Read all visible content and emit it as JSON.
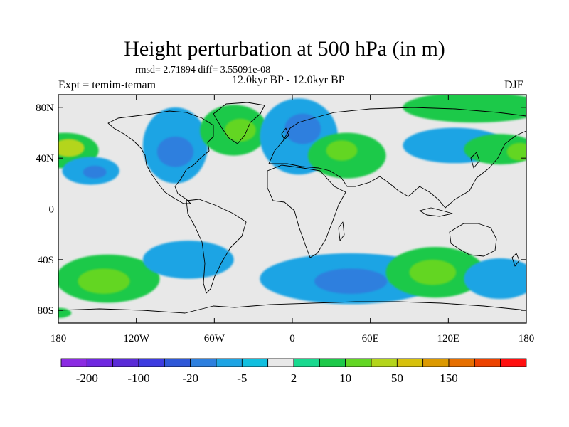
{
  "title": "Height perturbation at 500 hPa (in m)",
  "stats": "rmsd= 2.71894 diff= 3.55091e-08",
  "experiment": "Expt = temim-temam",
  "period": "12.0kyr BP - 12.0kyr BP",
  "season": "DJF",
  "map": {
    "projection": "cylindrical equidistant",
    "lon_range": [
      -180,
      180
    ],
    "lat_range": [
      -90,
      90
    ],
    "x_ticks": [
      {
        "lon": -180,
        "label": "180"
      },
      {
        "lon": -120,
        "label": "120W"
      },
      {
        "lon": -60,
        "label": "60W"
      },
      {
        "lon": 0,
        "label": "0"
      },
      {
        "lon": 60,
        "label": "60E"
      },
      {
        "lon": 120,
        "label": "120E"
      },
      {
        "lon": 180,
        "label": "180"
      }
    ],
    "y_ticks": [
      {
        "lat": 80,
        "label": "80N"
      },
      {
        "lat": 40,
        "label": "40N"
      },
      {
        "lat": 0,
        "label": "0"
      },
      {
        "lat": -40,
        "label": "40S"
      },
      {
        "lat": -80,
        "label": "80S"
      }
    ],
    "background_color": "#e8e8e8",
    "anomaly_regions": [
      {
        "lon": -175,
        "lat": 46,
        "rlon": 26,
        "rlat": 14,
        "level": 2,
        "name": "north-pacific-positive"
      },
      {
        "lon": -172,
        "lat": 48,
        "rlon": 12,
        "rlat": 7,
        "level": 4,
        "name": "north-pacific-core"
      },
      {
        "lon": -155,
        "lat": 30,
        "rlon": 22,
        "rlat": 11,
        "level": -2,
        "name": "subtropical-pacific-negative"
      },
      {
        "lon": -152,
        "lat": 29,
        "rlon": 9,
        "rlat": 5,
        "level": -3,
        "name": "subtropical-pacific-core"
      },
      {
        "lon": -90,
        "lat": 50,
        "rlon": 25,
        "rlat": 30,
        "level": -2,
        "name": "north-america-negative"
      },
      {
        "lon": -90,
        "lat": 45,
        "rlon": 14,
        "rlat": 12,
        "level": -3,
        "name": "north-america-core"
      },
      {
        "lon": -45,
        "lat": 62,
        "rlon": 26,
        "rlat": 20,
        "level": 2,
        "name": "greenland-positive"
      },
      {
        "lon": -40,
        "lat": 62,
        "rlon": 12,
        "rlat": 9,
        "level": 3,
        "name": "greenland-core"
      },
      {
        "lon": 5,
        "lat": 57,
        "rlon": 30,
        "rlat": 30,
        "level": -2,
        "name": "europe-negative"
      },
      {
        "lon": 8,
        "lat": 63,
        "rlon": 14,
        "rlat": 12,
        "level": -3,
        "name": "europe-core"
      },
      {
        "lon": 42,
        "lat": 42,
        "rlon": 30,
        "rlat": 18,
        "level": 2,
        "name": "middle-east-positive"
      },
      {
        "lon": 38,
        "lat": 46,
        "rlon": 12,
        "rlat": 8,
        "level": 3,
        "name": "middle-east-core"
      },
      {
        "lon": 140,
        "lat": 80,
        "rlon": 55,
        "rlat": 12,
        "level": 2,
        "name": "arctic-positive"
      },
      {
        "lon": 125,
        "lat": 50,
        "rlon": 40,
        "rlat": 14,
        "level": -2,
        "name": "east-asia-negative"
      },
      {
        "lon": 160,
        "lat": 47,
        "rlon": 28,
        "rlat": 12,
        "level": 2,
        "name": "west-pacific-positive"
      },
      {
        "lon": 175,
        "lat": 45,
        "rlon": 10,
        "rlat": 7,
        "level": 3,
        "name": "west-pacific-core"
      },
      {
        "lon": -142,
        "lat": -55,
        "rlon": 40,
        "rlat": 19,
        "level": 2,
        "name": "south-pacific-positive"
      },
      {
        "lon": -145,
        "lat": -57,
        "rlon": 20,
        "rlat": 10,
        "level": 3,
        "name": "south-pacific-core"
      },
      {
        "lon": -80,
        "lat": -40,
        "rlon": 35,
        "rlat": 15,
        "level": -2,
        "name": "south-america-negative"
      },
      {
        "lon": 45,
        "lat": -55,
        "rlon": 70,
        "rlat": 20,
        "level": -2,
        "name": "southern-ocean-negative"
      },
      {
        "lon": 45,
        "lat": -57,
        "rlon": 28,
        "rlat": 10,
        "level": -3,
        "name": "southern-ocean-core"
      },
      {
        "lon": 110,
        "lat": -50,
        "rlon": 38,
        "rlat": 20,
        "level": 2,
        "name": "south-indian-positive"
      },
      {
        "lon": 108,
        "lat": -50,
        "rlon": 18,
        "rlat": 10,
        "level": 3,
        "name": "south-indian-core"
      },
      {
        "lon": 160,
        "lat": -55,
        "rlon": 28,
        "rlat": 16,
        "level": -2,
        "name": "south-west-pacific-negative"
      },
      {
        "lon": -180,
        "lat": -82,
        "rlon": 10,
        "rlat": 4,
        "level": 2,
        "name": "antarctic-positive"
      }
    ]
  },
  "colorbar": {
    "colors": [
      "#8b2be2",
      "#6f28e0",
      "#5a2bd7",
      "#3d3ce0",
      "#2e58d8",
      "#2d7fde",
      "#1ea4e4",
      "#11bfdf",
      "#e8e8e8",
      "#19d98f",
      "#1dc94a",
      "#63d624",
      "#b4d51b",
      "#d7c10c",
      "#dc9900",
      "#e66f00",
      "#ec4200",
      "#ff1010"
    ],
    "labels": [
      "-200",
      "-100",
      "-20",
      "-5",
      "2",
      "10",
      "50",
      "150"
    ],
    "label_positions": [
      1,
      3,
      5,
      7,
      9,
      11,
      13,
      15
    ]
  }
}
